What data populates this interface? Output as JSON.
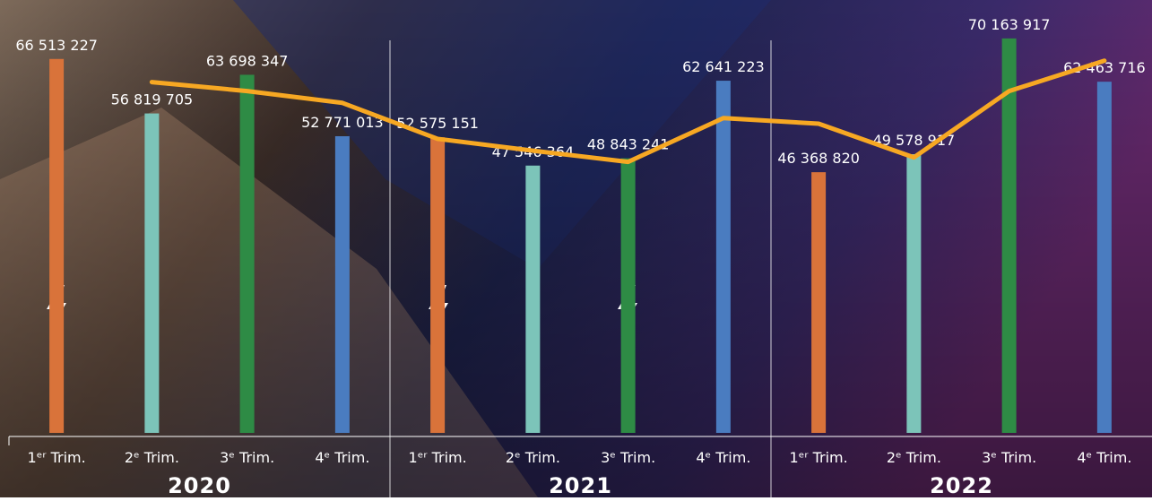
{
  "chart_data": {
    "type": "bar",
    "categories": [
      "1ᵉʳ Trim.",
      "2ᵉ Trim.",
      "3ᵉ Trim.",
      "4ᵉ Trim.",
      "1ᵉʳ Trim.",
      "2ᵉ Trim.",
      "3ᵉ Trim.",
      "4ᵉ Trim.",
      "1ᵉʳ Trim.",
      "2ᵉ Trim.",
      "3ᵉ Trim.",
      "4ᵉ Trim."
    ],
    "groups": [
      "2020",
      "2021",
      "2022"
    ],
    "values": [
      66513227,
      56819705,
      63698347,
      52771013,
      52575151,
      47546364,
      48843241,
      62641223,
      46368820,
      49578917,
      70163917,
      62463716
    ],
    "value_labels": [
      "66 513 227",
      "56 819 705",
      "63 698 347",
      "52 771 013",
      "52 575 151",
      "47 546 364",
      "48 843 241",
      "62 641 223",
      "46 368 820",
      "49 578 917",
      "70 163 917",
      "62 463 716"
    ],
    "colors": [
      "#d9733a",
      "#7cc4b9",
      "#2e8b45",
      "#4a7cc0",
      "#d9733a",
      "#7cc4b9",
      "#2e8b45",
      "#4a7cc0",
      "#d9733a",
      "#7cc4b9",
      "#2e8b45",
      "#4a7cc0"
    ],
    "line": {
      "color": "#f7a823",
      "values": [
        null,
        62400000,
        60800000,
        58700000,
        52300000,
        50200000,
        48200000,
        56000000,
        55000000,
        49000000,
        60800000,
        66200000
      ]
    },
    "ylim": [
      0,
      77000000
    ]
  }
}
